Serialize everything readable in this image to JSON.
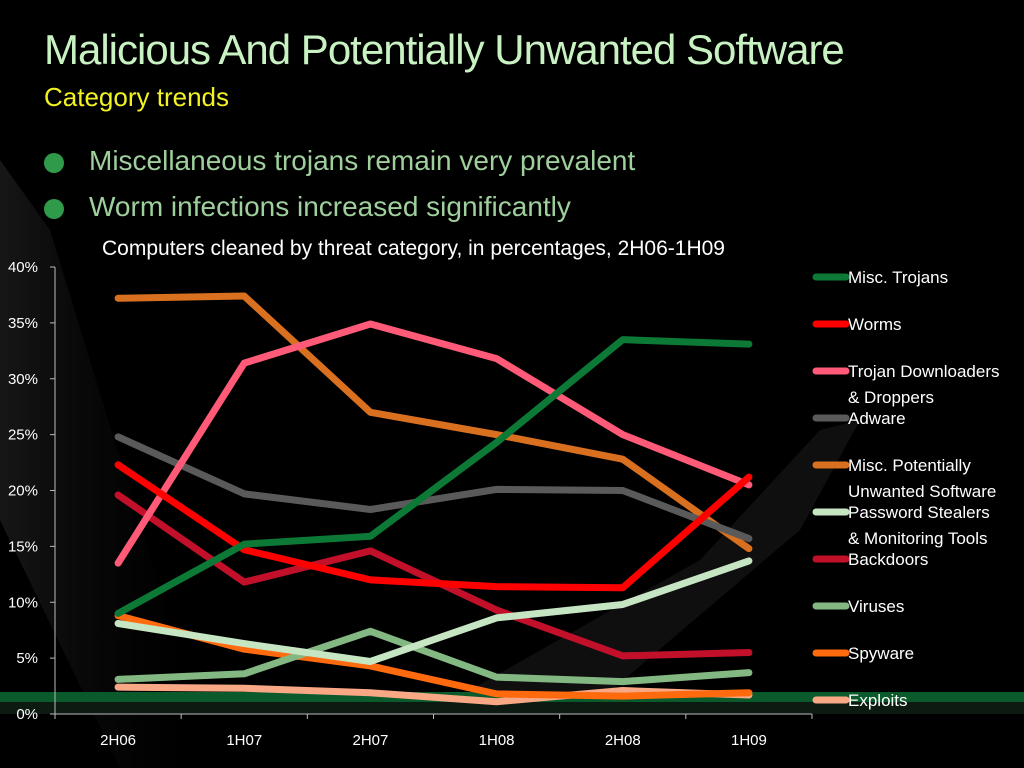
{
  "slide": {
    "title": "Malicious And Potentially Unwanted Software",
    "subtitle": "Category trends",
    "bullets": [
      "Miscellaneous trojans remain very prevalent",
      "Worm infections increased significantly"
    ]
  },
  "chart_data": {
    "type": "line",
    "title": "Computers cleaned by threat category, in percentages, 2H06-1H09",
    "categories": [
      "2H06",
      "1H07",
      "2H07",
      "1H08",
      "2H08",
      "1H09"
    ],
    "ylim": [
      0,
      40
    ],
    "yticks": [
      "0%",
      "5%",
      "10%",
      "15%",
      "20%",
      "25%",
      "30%",
      "35%",
      "40%"
    ],
    "grid": false,
    "legend_position": "right",
    "series": [
      {
        "name": "Misc. Trojans",
        "color": "#0c7a36",
        "values": [
          9,
          15.2,
          15.9,
          24.3,
          33.5,
          33.1
        ]
      },
      {
        "name": "Worms",
        "color": "#ff0000",
        "values": [
          22.3,
          14.7,
          12,
          11.4,
          11.3,
          21.2
        ]
      },
      {
        "name": "Trojan Downloaders & Droppers",
        "color": "#ff5b79",
        "values": [
          13.5,
          31.4,
          34.9,
          31.8,
          25,
          20.5
        ]
      },
      {
        "name": "Adware",
        "color": "#5a5a5a",
        "values": [
          24.8,
          19.7,
          18.3,
          20.1,
          20,
          15.7
        ]
      },
      {
        "name": "Misc. Potentially Unwanted Software",
        "color": "#d9701f",
        "values": [
          37.2,
          37.4,
          27,
          25,
          22.8,
          14.8
        ]
      },
      {
        "name": "Password Stealers & Monitoring Tools",
        "color": "#c6e5c3",
        "values": [
          8.1,
          6.3,
          4.7,
          8.6,
          9.8,
          13.7
        ]
      },
      {
        "name": "Backdoors",
        "color": "#c2102a",
        "values": [
          19.6,
          11.8,
          14.6,
          9.3,
          5.2,
          5.5
        ]
      },
      {
        "name": "Viruses",
        "color": "#84b883",
        "values": [
          3.1,
          3.6,
          7.4,
          3.3,
          2.9,
          3.7
        ]
      },
      {
        "name": "Spyware",
        "color": "#ff6a0f",
        "values": [
          8.8,
          5.8,
          4.3,
          1.8,
          1.6,
          1.9
        ]
      },
      {
        "name": "Exploits",
        "color": "#f8a884",
        "values": [
          2.4,
          2.3,
          1.9,
          1.1,
          2.1,
          1.7
        ]
      }
    ]
  }
}
